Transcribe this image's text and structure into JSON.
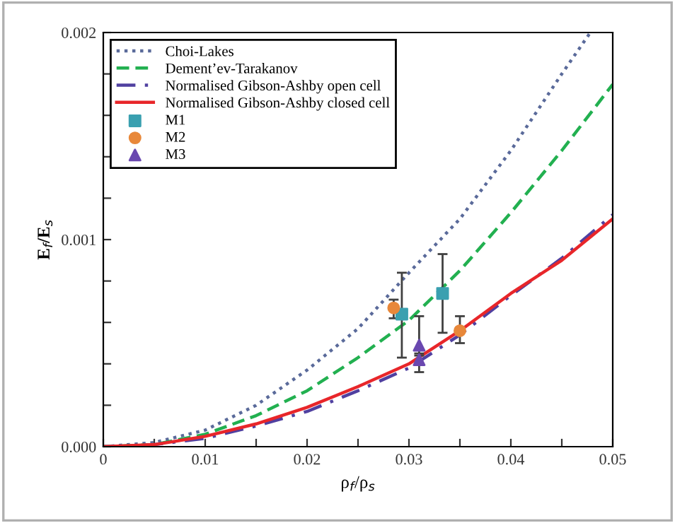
{
  "chart_data": {
    "type": "line",
    "xlabel": "ρ$_{f}$/ρ$_{s}$",
    "ylabel": "E$_{f}$/E$_{s}$",
    "xlim": [
      0,
      0.05
    ],
    "ylim": [
      0,
      0.002
    ],
    "xticks": [
      0,
      {
        "value": 0.005,
        "label": null
      },
      0.01,
      {
        "value": 0.015,
        "label": null
      },
      0.02,
      {
        "value": 0.025,
        "label": null
      },
      0.03,
      {
        "value": 0.035,
        "label": null
      },
      0.04,
      {
        "value": 0.045,
        "label": null
      },
      0.05
    ],
    "yticks": [
      {
        "value": 0,
        "label": "0.000"
      },
      {
        "value": 0.0002,
        "label": null
      },
      {
        "value": 0.0004,
        "label": null
      },
      {
        "value": 0.0006,
        "label": null
      },
      {
        "value": 0.0008,
        "label": null
      },
      {
        "value": 0.001,
        "label": "0.001"
      },
      {
        "value": 0.0012,
        "label": null
      },
      {
        "value": 0.0014,
        "label": null
      },
      {
        "value": 0.0016,
        "label": null
      },
      {
        "value": 0.0018,
        "label": null
      },
      {
        "value": 0.002,
        "label": "0.002"
      }
    ],
    "grid": false,
    "legend": "top left",
    "series": [
      {
        "name": "Choi-Lakes",
        "color": "#5a6a9a",
        "line_style": "dotted",
        "x": [
          0,
          0.005,
          0.01,
          0.015,
          0.02,
          0.025,
          0.03,
          0.035,
          0.04,
          0.045,
          0.0478
        ],
        "values": [
          0,
          2e-05,
          8e-05,
          0.0002,
          0.00037,
          0.00057,
          0.00084,
          0.0011,
          0.00143,
          0.0018,
          0.002
        ]
      },
      {
        "name": "Dement’ev-Tarakanov",
        "color": "#22b050",
        "line_style": "dashed",
        "x": [
          0,
          0.005,
          0.01,
          0.015,
          0.02,
          0.025,
          0.03,
          0.035,
          0.04,
          0.045,
          0.05
        ],
        "values": [
          0,
          1e-05,
          6e-05,
          0.00015,
          0.00027,
          0.00043,
          0.00061,
          0.00085,
          0.00113,
          0.00143,
          0.00175
        ]
      },
      {
        "name": "Normalised Gibson-Ashby open cell",
        "color": "#5040a0",
        "line_style": "dashdot",
        "x": [
          0,
          0.005,
          0.01,
          0.015,
          0.02,
          0.025,
          0.03,
          0.035,
          0.04,
          0.045,
          0.05
        ],
        "values": [
          0,
          1e-05,
          4e-05,
          0.0001,
          0.00017,
          0.00027,
          0.00038,
          0.00054,
          0.00073,
          0.00091,
          0.00112
        ]
      },
      {
        "name": "Normalised Gibson-Ashby closed cell",
        "color": "#e8262a",
        "line_style": "solid",
        "x": [
          0,
          0.005,
          0.01,
          0.015,
          0.02,
          0.025,
          0.03,
          0.035,
          0.04,
          0.045,
          0.05
        ],
        "values": [
          0,
          1e-05,
          5e-05,
          0.00011,
          0.00019,
          0.00029,
          0.0004,
          0.00056,
          0.00074,
          0.0009,
          0.0011
        ]
      },
      {
        "name": "M1",
        "type": "scatter",
        "color": "#3aa0b0",
        "marker": "square",
        "x": [
          0.0293,
          0.0333
        ],
        "values": [
          0.00064,
          0.00074
        ],
        "errors": [
          [
            0.00043,
            0.00084
          ],
          [
            0.00055,
            0.00093
          ]
        ]
      },
      {
        "name": "M2",
        "type": "scatter",
        "color": "#e8883a",
        "marker": "circle",
        "x": [
          0.0285,
          0.035
        ],
        "values": [
          0.00067,
          0.00056
        ],
        "errors": [
          [
            0.00062,
            0.00071
          ],
          [
            0.0005,
            0.00063
          ]
        ]
      },
      {
        "name": "M3",
        "type": "scatter",
        "color": "#6a48b0",
        "marker": "triangle",
        "x": [
          0.031,
          0.031
        ],
        "values": [
          0.00049,
          0.00042
        ],
        "errors": [
          [
            0.00044,
            0.00063
          ],
          [
            0.00036,
            0.00045
          ]
        ]
      }
    ]
  }
}
